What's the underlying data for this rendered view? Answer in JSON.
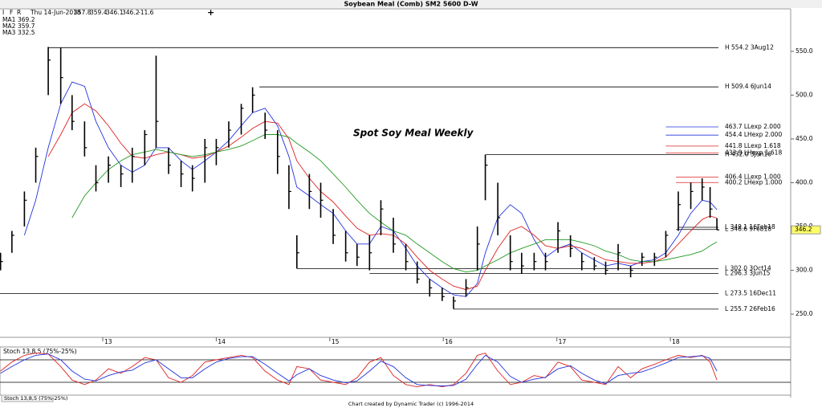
{
  "header": {
    "tools": [
      "I",
      "F",
      "R"
    ],
    "info": [
      "Thu 14-Jun-2018",
      "357.8",
      "359.4",
      "346.1",
      "346.2",
      "-11.6"
    ],
    "add": "+"
  },
  "footer": "Chart created by Dynamic Trader  (c) 1996-2014",
  "chart_data": {
    "type": "ohlc",
    "title": "Soybean Meal (Comb) SM2 5600 D-W",
    "annotation": "Spot Soy Meal Weekly",
    "x": [
      12.1,
      12.2,
      12.31,
      12.41,
      12.52,
      12.63,
      12.73,
      12.84,
      12.94,
      13.05,
      13.16,
      13.26,
      13.37,
      13.47,
      13.58,
      13.69,
      13.79,
      13.9,
      14.0,
      14.11,
      14.22,
      14.32,
      14.43,
      14.54,
      14.64,
      14.71,
      14.82,
      14.92,
      15.03,
      15.14,
      15.24,
      15.35,
      15.45,
      15.56,
      15.67,
      15.77,
      15.88,
      15.99,
      16.09,
      16.2,
      16.3,
      16.37,
      16.48,
      16.59,
      16.69,
      16.8,
      16.9,
      17.01,
      17.12,
      17.22,
      17.33,
      17.43,
      17.54,
      17.65,
      17.75,
      17.86,
      17.96,
      18.07,
      18.18,
      18.28,
      18.35,
      18.41
    ],
    "high": [
      320,
      345,
      390,
      440,
      555,
      554,
      500,
      470,
      420,
      430,
      420,
      440,
      460,
      545,
      440,
      425,
      420,
      450,
      450,
      470,
      490,
      509,
      480,
      460,
      420,
      340,
      410,
      400,
      370,
      345,
      330,
      340,
      380,
      360,
      330,
      310,
      290,
      280,
      270,
      290,
      350,
      432,
      400,
      340,
      320,
      320,
      320,
      355,
      340,
      320,
      315,
      310,
      330,
      305,
      320,
      320,
      345,
      390,
      400,
      405,
      395,
      359.4
    ],
    "low": [
      300,
      320,
      350,
      400,
      500,
      490,
      460,
      430,
      390,
      400,
      395,
      400,
      420,
      440,
      410,
      395,
      390,
      400,
      420,
      440,
      455,
      480,
      450,
      410,
      370,
      302,
      370,
      360,
      330,
      310,
      305,
      300,
      340,
      320,
      300,
      285,
      270,
      265,
      256,
      270,
      300,
      380,
      340,
      300,
      296,
      300,
      300,
      320,
      315,
      300,
      300,
      295,
      300,
      292,
      305,
      305,
      315,
      345,
      370,
      380,
      360,
      346.1
    ],
    "close": [
      310,
      340,
      380,
      430,
      540,
      520,
      470,
      440,
      400,
      420,
      410,
      430,
      455,
      470,
      420,
      410,
      405,
      440,
      440,
      460,
      485,
      500,
      460,
      430,
      390,
      320,
      390,
      380,
      340,
      320,
      315,
      320,
      370,
      330,
      310,
      290,
      280,
      270,
      265,
      280,
      330,
      420,
      360,
      310,
      305,
      310,
      310,
      345,
      325,
      310,
      305,
      300,
      320,
      300,
      315,
      315,
      340,
      375,
      390,
      395,
      370,
      346.2
    ],
    "series": [
      {
        "name": "MA1",
        "color": "#2233dd",
        "values": [
          null,
          null,
          340,
          380,
          440,
          490,
          515,
          510,
          470,
          440,
          420,
          412,
          420,
          440,
          440,
          425,
          415,
          425,
          435,
          448,
          465,
          480,
          485,
          465,
          430,
          395,
          385,
          375,
          365,
          345,
          330,
          330,
          350,
          345,
          325,
          305,
          290,
          280,
          272,
          270,
          285,
          320,
          360,
          375,
          365,
          335,
          315,
          325,
          330,
          320,
          312,
          305,
          308,
          305,
          310,
          312,
          320,
          340,
          365,
          380,
          378,
          369.2
        ]
      },
      {
        "name": "MA2",
        "color": "#dd2222",
        "values": [
          null,
          null,
          null,
          null,
          430,
          455,
          480,
          490,
          482,
          465,
          445,
          430,
          428,
          432,
          435,
          432,
          428,
          430,
          435,
          442,
          452,
          462,
          470,
          468,
          450,
          425,
          405,
          390,
          378,
          362,
          348,
          340,
          342,
          340,
          330,
          315,
          300,
          290,
          282,
          278,
          282,
          300,
          325,
          345,
          350,
          340,
          328,
          325,
          328,
          325,
          318,
          312,
          310,
          308,
          308,
          310,
          315,
          330,
          345,
          358,
          362,
          359.7
        ]
      },
      {
        "name": "MA3",
        "color": "#229922",
        "values": [
          null,
          null,
          null,
          null,
          null,
          null,
          360,
          385,
          400,
          415,
          425,
          432,
          435,
          438,
          435,
          432,
          430,
          432,
          435,
          438,
          442,
          448,
          455,
          455,
          452,
          445,
          435,
          425,
          410,
          395,
          380,
          365,
          355,
          345,
          340,
          330,
          320,
          310,
          302,
          298,
          300,
          305,
          312,
          320,
          325,
          330,
          335,
          335,
          335,
          332,
          328,
          322,
          318,
          312,
          310,
          310,
          312,
          315,
          318,
          322,
          328,
          332.5
        ]
      }
    ],
    "levels": [
      {
        "label": "H 554.2 3Aug12",
        "value": 554.2,
        "from": 12.52,
        "color": "#000000"
      },
      {
        "label": "H 509.4 6Jun14",
        "value": 509.4,
        "from": 14.38,
        "color": "#000000"
      },
      {
        "label": "463.7 LLexp 2.000",
        "value": 463.7,
        "from": 17.96,
        "color": "#2233dd"
      },
      {
        "label": "454.4 LHexp 2.000",
        "value": 454.4,
        "from": 17.96,
        "color": "#2233dd"
      },
      {
        "label": "441.8 LLexp 1.618",
        "value": 441.8,
        "from": 17.96,
        "color": "#dd2222"
      },
      {
        "label": "433.9 LHexp 1.618",
        "value": 433.9,
        "from": 17.96,
        "color": "#dd2222"
      },
      {
        "label": "H 432.0 3Jun16",
        "value": 432.0,
        "from": 16.37,
        "color": "#000000"
      },
      {
        "label": "406.4 LLexp 1.000",
        "value": 406.4,
        "from": 18.05,
        "color": "#dd2222"
      },
      {
        "label": "400.2 LHexp 1.000",
        "value": 400.2,
        "from": 18.05,
        "color": "#dd2222"
      },
      {
        "label": "L 349.1 16Feb18",
        "value": 349.1,
        "from": 18.07,
        "color": "#000000"
      },
      {
        "label": "L 346.6 9Feb18",
        "value": 346.6,
        "from": 18.05,
        "color": "#000000"
      },
      {
        "label": "L 302.0 3Oct14",
        "value": 302.0,
        "from": 14.71,
        "color": "#000000"
      },
      {
        "label": "L 296.3 3Jun15",
        "value": 296.3,
        "from": 15.35,
        "color": "#000000"
      },
      {
        "label": "L 273.5 16Dec11",
        "value": 273.5,
        "from": 12.095,
        "color": "#000000"
      },
      {
        "label": "L 255.7 26Feb16",
        "value": 255.7,
        "from": 16.09,
        "color": "#000000"
      }
    ],
    "xlim": [
      12.095,
      19.06
    ],
    "xticks": [
      13,
      14,
      15,
      16,
      17,
      18
    ],
    "ylim": [
      223.5,
      598.5
    ],
    "yticks": [
      {
        "value": 250,
        "label": "250.0"
      },
      {
        "value": 300,
        "label": "300.0"
      },
      {
        "value": 350,
        "label": "350.0"
      },
      {
        "value": 400,
        "label": "400.0"
      },
      {
        "value": 450,
        "label": "450.0"
      },
      {
        "value": 500,
        "label": "500.0"
      },
      {
        "value": 550,
        "label": "550.0"
      }
    ],
    "stochastic": {
      "label": "Stoch 13,8,5 (75%-25%)",
      "ylim": [
        0,
        100
      ],
      "levels": [
        75,
        25
      ],
      "series": [
        {
          "color": "#dd2222",
          "values": [
            50,
            70,
            85,
            90,
            88,
            60,
            30,
            20,
            30,
            55,
            45,
            60,
            80,
            75,
            35,
            25,
            40,
            70,
            75,
            80,
            85,
            80,
            50,
            30,
            20,
            60,
            55,
            30,
            25,
            20,
            35,
            70,
            80,
            40,
            20,
            15,
            20,
            15,
            20,
            45,
            85,
            90,
            50,
            20,
            25,
            40,
            35,
            70,
            60,
            30,
            25,
            20,
            60,
            35,
            55,
            65,
            75,
            85,
            80,
            85,
            70,
            30
          ]
        },
        {
          "color": "#2233dd",
          "values": [
            45,
            60,
            75,
            85,
            88,
            75,
            50,
            32,
            28,
            40,
            48,
            52,
            68,
            75,
            55,
            35,
            35,
            55,
            70,
            78,
            82,
            82,
            65,
            45,
            28,
            42,
            55,
            40,
            30,
            24,
            28,
            50,
            72,
            60,
            35,
            20,
            18,
            17,
            18,
            32,
            65,
            85,
            70,
            38,
            25,
            32,
            36,
            55,
            62,
            45,
            30,
            22,
            40,
            45,
            48,
            58,
            68,
            80,
            82,
            84,
            78,
            50
          ]
        }
      ]
    }
  }
}
